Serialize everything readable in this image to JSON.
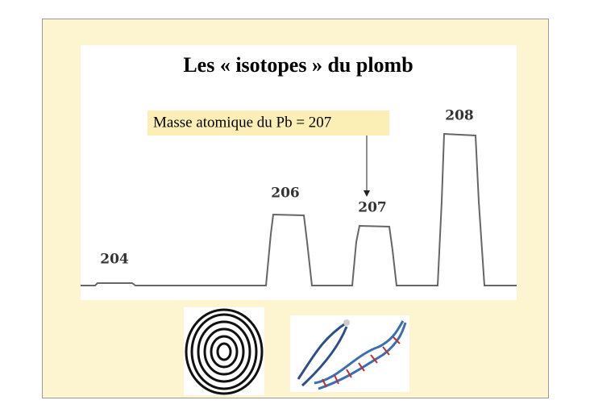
{
  "slide": {
    "title": "Les « isotopes » du plomb",
    "annotation": "Masse atomique du Pb = 207",
    "peak_labels": [
      204,
      206,
      207,
      208
    ]
  }
}
